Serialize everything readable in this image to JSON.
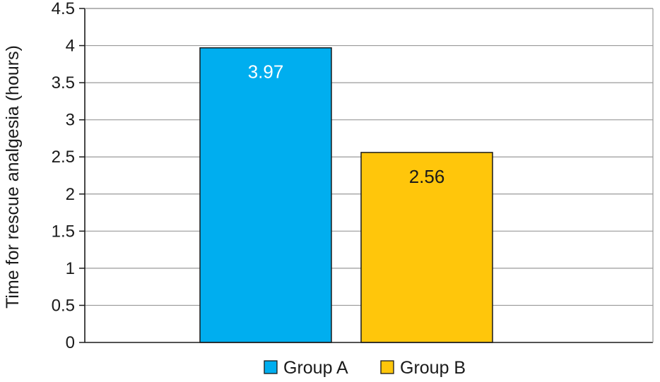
{
  "chart_data": {
    "type": "bar",
    "title": "",
    "xlabel": "",
    "ylabel": "Time for rescue analgesia (hours)",
    "ylim": [
      0,
      4.5
    ],
    "yticks": [
      "0",
      "0.5",
      "1",
      "1.5",
      "2",
      "2.5",
      "3",
      "3.5",
      "4",
      "4.5"
    ],
    "grid": true,
    "legend_position": "bottom",
    "series": [
      {
        "name": "Group A",
        "value": 3.97,
        "label": "3.97",
        "color": "#00AEEF",
        "label_color": "#ffffff"
      },
      {
        "name": "Group B",
        "value": 2.56,
        "label": "2.56",
        "color": "#FFC60B",
        "label_color": "#1a1a1a"
      }
    ]
  }
}
